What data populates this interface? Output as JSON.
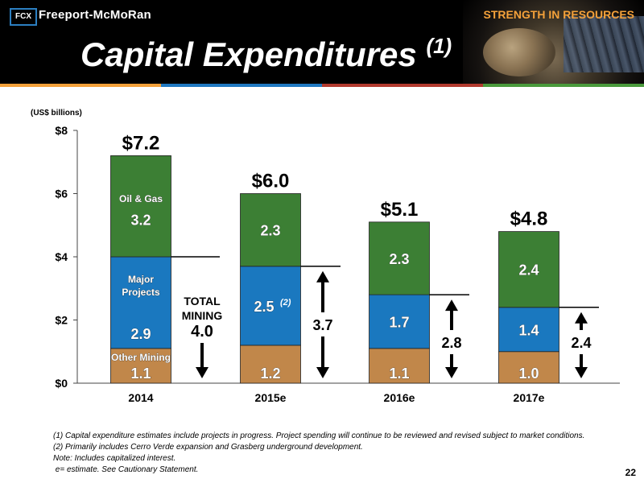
{
  "header": {
    "brand": "Freeport-McMoRan",
    "logo_text": "FCX",
    "tagline": "STRENGTH IN RESOURCES",
    "title": "Capital Expenditures",
    "title_sup": "(1)",
    "colors": {
      "background": "#000000",
      "tagline": "#f4a13a",
      "stripe": [
        "#f4a13a",
        "#1f78c1",
        "#b23a2e",
        "#4a9a3c"
      ]
    }
  },
  "chart_data": {
    "type": "bar",
    "stacked": true,
    "unit_label": "(US$ billions)",
    "categories": [
      "2014",
      "2015e",
      "2016e",
      "2017e"
    ],
    "ylim": [
      0,
      8
    ],
    "y_ticks": [
      "$0",
      "$2",
      "$4",
      "$6",
      "$8"
    ],
    "series": [
      {
        "name": "Other Mining",
        "color": "#c1874a",
        "values": [
          1.1,
          1.2,
          1.1,
          1.0
        ]
      },
      {
        "name": "Major Projects",
        "color": "#1a78bf",
        "values": [
          2.9,
          2.5,
          1.7,
          1.4
        ]
      },
      {
        "name": "Oil & Gas",
        "color": "#3c7f34",
        "values": [
          3.2,
          2.3,
          2.3,
          2.4
        ]
      }
    ],
    "value_labels": [
      [
        "1.1",
        "1.2",
        "1.1",
        "1.0"
      ],
      [
        "2.9",
        "2.5",
        "1.7",
        "1.4"
      ],
      [
        "3.2",
        "2.3",
        "2.3",
        "2.4"
      ]
    ],
    "value_label_superscripts": {
      "1": {
        "1": "(2)"
      }
    },
    "totals": [
      "$7.2",
      "$6.0",
      "$5.1",
      "$4.8"
    ],
    "mining_totals": [
      "4.0",
      "3.7",
      "2.8",
      "2.4"
    ],
    "mining_values": [
      4.0,
      3.7,
      2.8,
      2.4
    ],
    "mining_first_label": [
      "TOTAL",
      "MINING"
    ],
    "in_bar_series_labels": {
      "other_mining": "Other Mining",
      "major_projects": [
        "Major",
        "Projects"
      ],
      "oil_gas": "Oil & Gas"
    }
  },
  "footnotes": [
    "(1)   Capital expenditure estimates include projects in progress. Project spending will continue to be reviewed and revised subject to market conditions.",
    "(2)   Primarily includes Cerro Verde expansion and Grasberg underground development.",
    "Note: Includes capitalized interest.",
    " e= estimate. See Cautionary Statement."
  ],
  "page_number": "22"
}
